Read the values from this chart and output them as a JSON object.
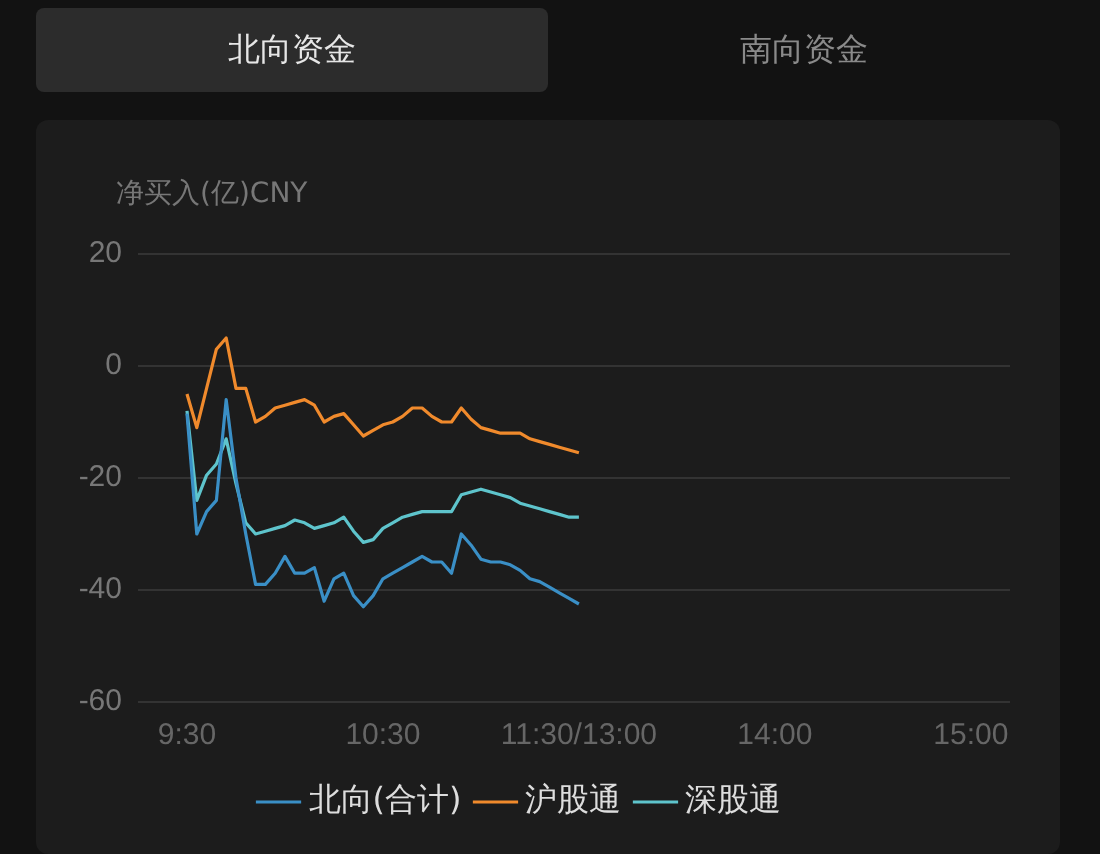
{
  "chart_data": {
    "type": "line",
    "ylabel": "净买入(亿)CNY",
    "annotations": [
      "北向资金",
      "南向资金"
    ],
    "categories": [
      null,
      null,
      null,
      null,
      null,
      "9:30",
      null,
      null,
      null,
      null,
      null,
      null,
      null,
      null,
      null,
      null,
      null,
      null,
      null,
      null,
      null,
      null,
      null,
      null,
      null,
      "10:30",
      null,
      null,
      null,
      null,
      null,
      null,
      null,
      null,
      null,
      null,
      null,
      null,
      null,
      null,
      null,
      null,
      null,
      null,
      null,
      "11:30/13:00",
      null,
      null,
      null,
      null,
      null,
      null,
      null,
      null,
      null,
      null,
      null,
      null,
      null,
      null,
      null,
      null,
      null,
      null,
      null,
      "14:00",
      null,
      null,
      null,
      null,
      null,
      null,
      null,
      null,
      null,
      null,
      null,
      null,
      null,
      null,
      null,
      null,
      null,
      null,
      null,
      "15:00",
      null,
      null,
      null,
      null
    ],
    "ylim": [
      -60,
      20
    ],
    "yticks": [
      -60,
      -40,
      -20,
      0,
      20
    ],
    "grid": "y",
    "legend": "bottom",
    "marker": "none",
    "line_style": "solid",
    "series": [
      {
        "name": "北向(合计)",
        "color": "#3a8fc6",
        "values": [
          null,
          null,
          null,
          null,
          null,
          -8.5,
          -30,
          -26,
          -24,
          -6,
          -20,
          -30,
          -39,
          -39,
          -37,
          -34,
          -37,
          -37,
          -36,
          -42,
          -38,
          -37,
          -41,
          -43,
          -41,
          -38,
          -37,
          -36,
          -35,
          -34,
          -35,
          -35,
          -37,
          -30,
          -32,
          -34.5,
          -35,
          -35,
          -35.5,
          -36.5,
          -38,
          -38.5,
          -39.5,
          -40.5,
          -41.5,
          -42.5,
          null,
          null,
          null,
          null,
          null,
          null,
          null,
          null,
          null,
          null,
          null,
          null,
          null,
          null,
          null,
          null,
          null,
          null,
          null,
          null,
          null,
          null,
          null,
          null,
          null,
          null,
          null,
          null,
          null,
          null,
          null,
          null,
          null,
          null,
          null,
          null,
          null,
          null,
          null,
          null,
          null,
          null,
          null,
          null
        ]
      },
      {
        "name": "沪股通",
        "color": "#f08a2c",
        "values": [
          null,
          null,
          null,
          null,
          null,
          -5,
          -11,
          -4,
          3,
          5,
          -4,
          -4,
          -10,
          -9,
          -7.5,
          -7,
          -6.5,
          -6,
          -7,
          -10,
          -9,
          -8.5,
          -10.5,
          -12.5,
          -11.5,
          -10.5,
          -10,
          -9,
          -7.5,
          -7.5,
          -9,
          -10,
          -10,
          -7.5,
          -9.5,
          -11,
          -11.5,
          -12,
          -12,
          -12,
          -13,
          -13.5,
          -14,
          -14.5,
          -15,
          -15.5,
          null,
          null,
          null,
          null,
          null,
          null,
          null,
          null,
          null,
          null,
          null,
          null,
          null,
          null,
          null,
          null,
          null,
          null,
          null,
          null,
          null,
          null,
          null,
          null,
          null,
          null,
          null,
          null,
          null,
          null,
          null,
          null,
          null,
          null,
          null,
          null,
          null,
          null,
          null,
          null,
          null,
          null,
          null,
          null
        ]
      },
      {
        "name": "深股通",
        "color": "#5ec4cc",
        "values": [
          null,
          null,
          null,
          null,
          null,
          -8,
          -24,
          -19.5,
          -17.5,
          -13,
          -21,
          -28,
          -30,
          -29.5,
          -29,
          -28.5,
          -27.5,
          -28,
          -29,
          -28.5,
          -28,
          -27,
          -29.5,
          -31.5,
          -31,
          -29,
          -28,
          -27,
          -26.5,
          -26,
          -26,
          -26,
          -26,
          -23,
          -22.5,
          -22,
          -22.5,
          -23,
          -23.5,
          -24.5,
          -25,
          -25.5,
          -26,
          -26.5,
          -27,
          -27,
          null,
          null,
          null,
          null,
          null,
          null,
          null,
          null,
          null,
          null,
          null,
          null,
          null,
          null,
          null,
          null,
          null,
          null,
          null,
          null,
          null,
          null,
          null,
          null,
          null,
          null,
          null,
          null,
          null,
          null,
          null,
          null,
          null,
          null,
          null,
          null,
          null,
          null,
          null,
          null,
          null,
          null,
          null,
          null
        ]
      }
    ]
  }
}
